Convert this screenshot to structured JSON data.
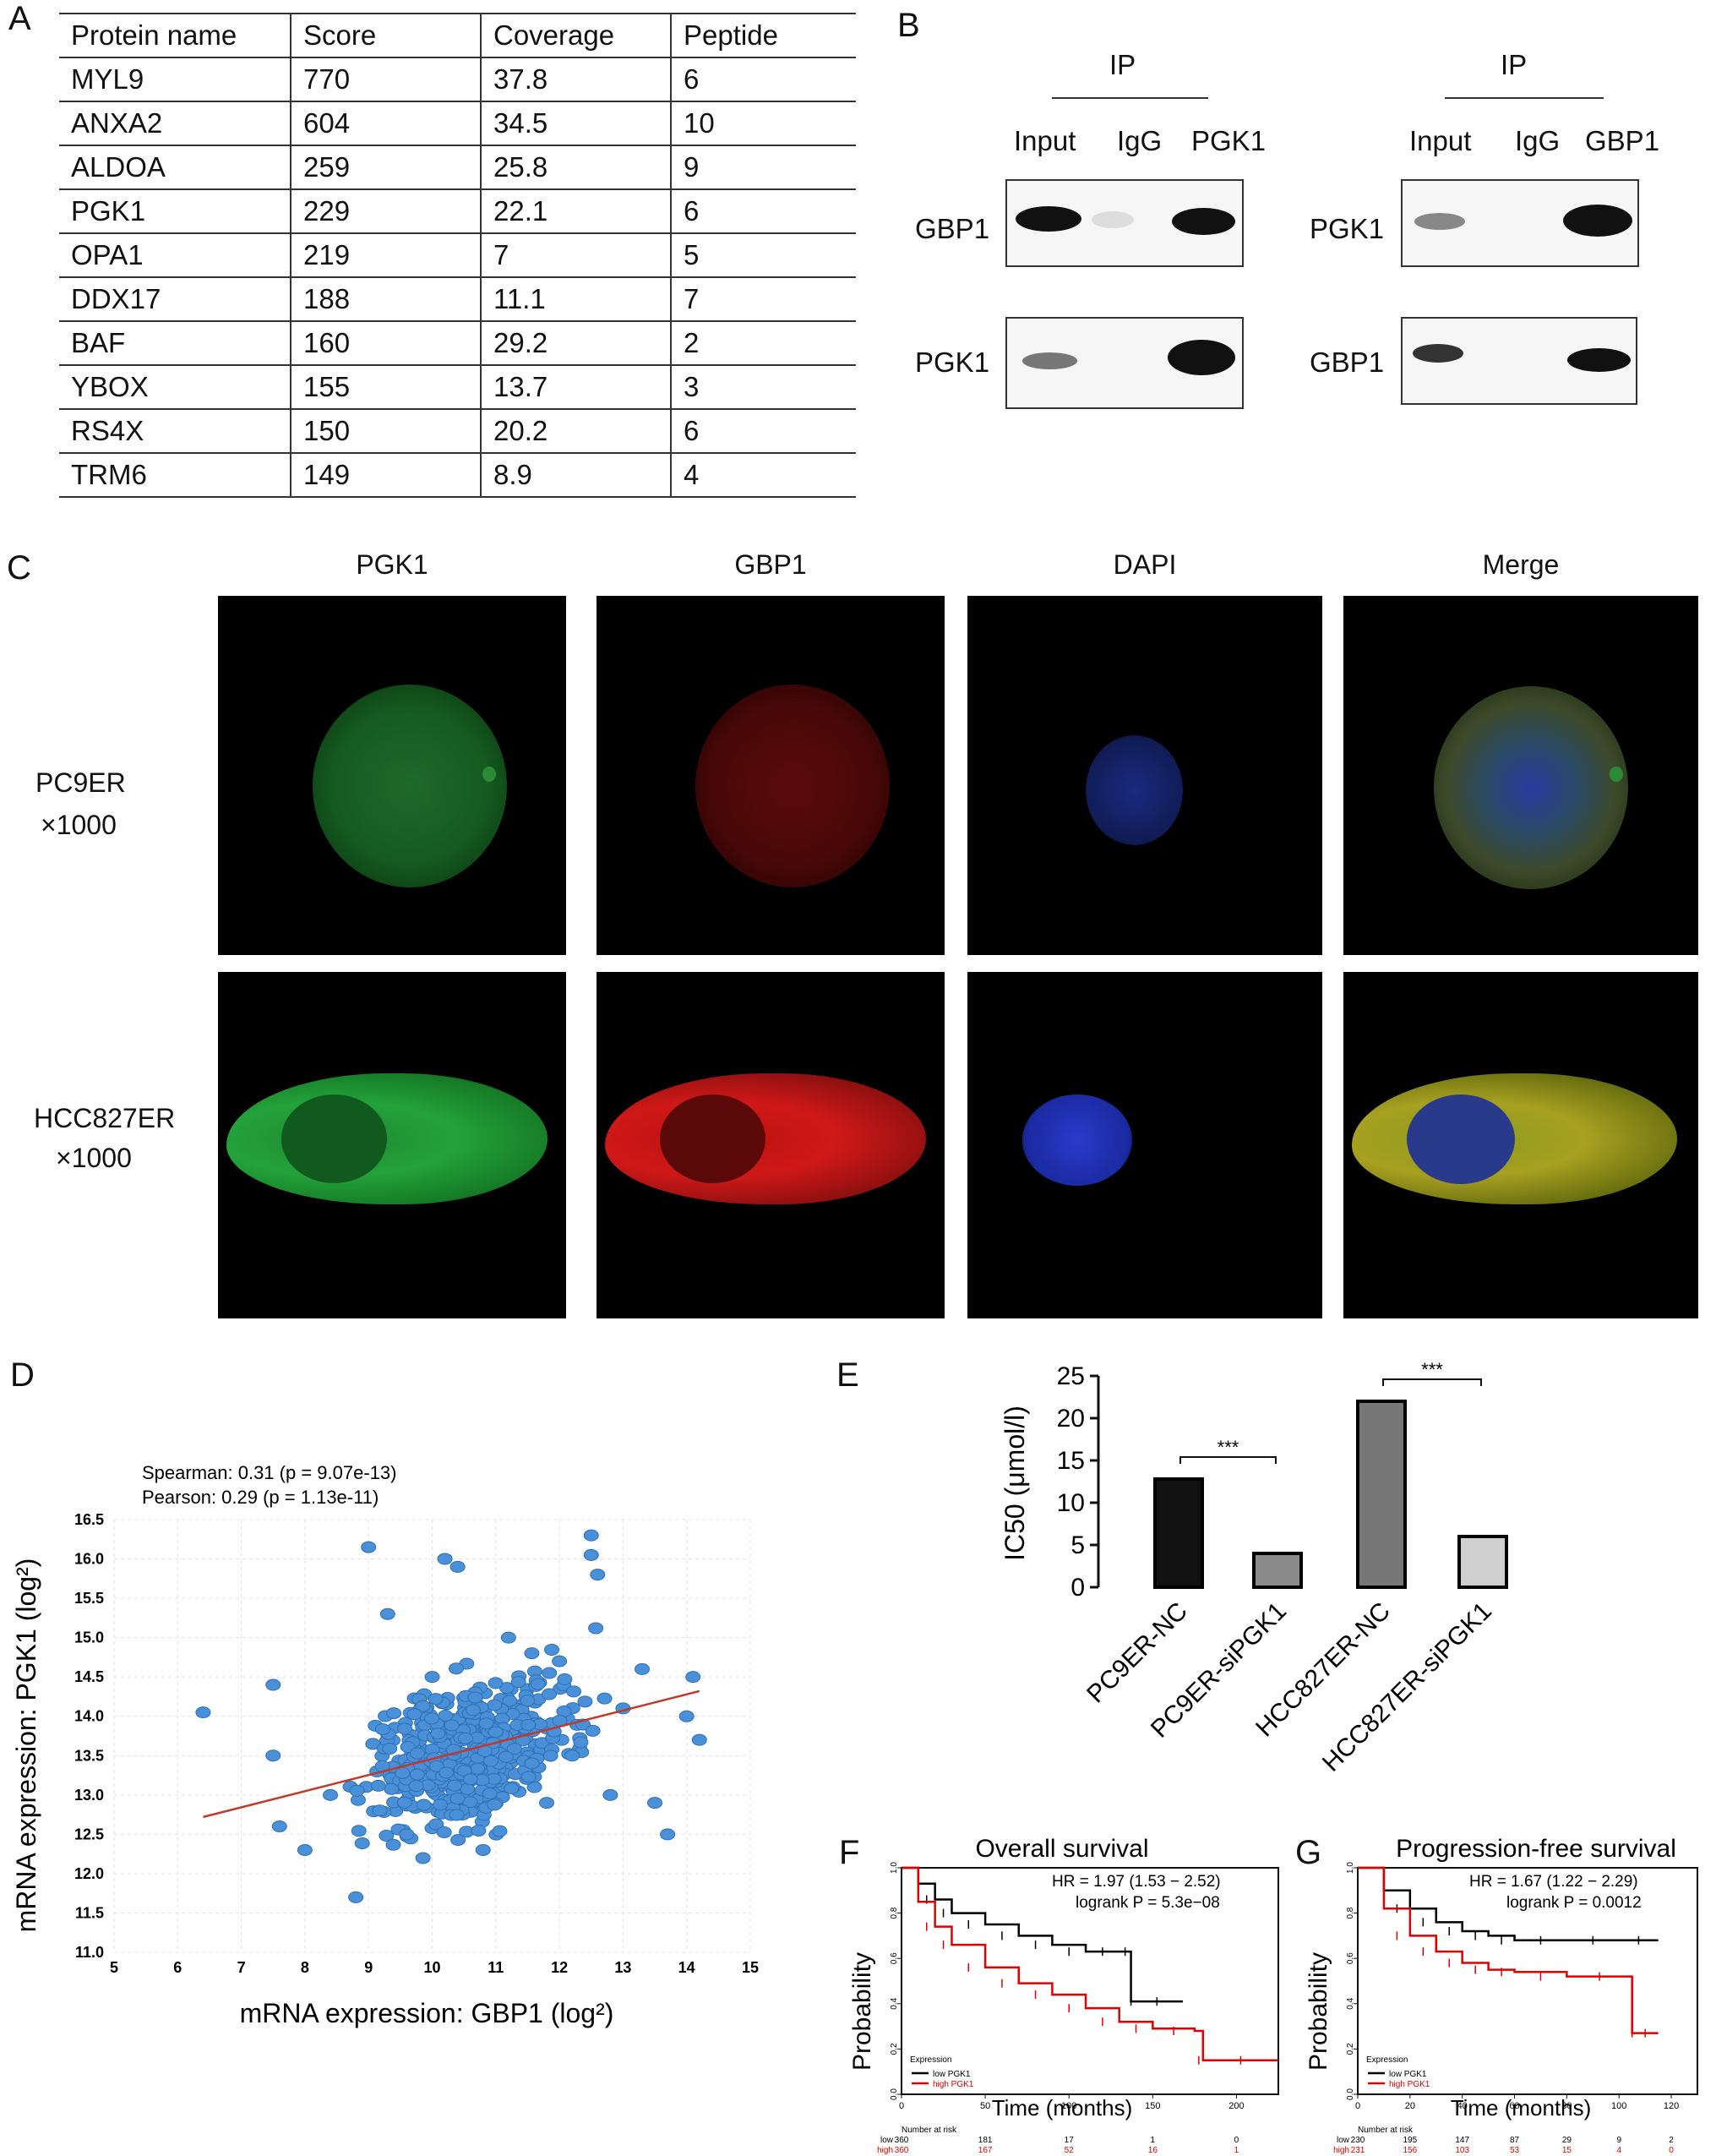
{
  "panels": {
    "A": "A",
    "B": "B",
    "C": "C",
    "D": "D",
    "E": "E",
    "F": "F",
    "G": "G"
  },
  "table": {
    "headers": [
      "Protein name",
      "Score",
      "Coverage",
      "Peptide"
    ],
    "rows": [
      [
        "MYL9",
        "770",
        "37.8",
        "6"
      ],
      [
        "ANXA2",
        "604",
        "34.5",
        "10"
      ],
      [
        "ALDOA",
        "259",
        "25.8",
        "9"
      ],
      [
        "PGK1",
        "229",
        "22.1",
        "6"
      ],
      [
        "OPA1",
        "219",
        "7",
        "5"
      ],
      [
        "DDX17",
        "188",
        "11.1",
        "7"
      ],
      [
        "BAF",
        "160",
        "29.2",
        "2"
      ],
      [
        "YBOX",
        "155",
        "13.7",
        "3"
      ],
      [
        "RS4X",
        "150",
        "20.2",
        "6"
      ],
      [
        "TRM6",
        "149",
        "8.9",
        "4"
      ]
    ]
  },
  "western": {
    "left": {
      "ip": "IP",
      "lanes": [
        "Input",
        "IgG",
        "PGK1"
      ],
      "rows": [
        "GBP1",
        "PGK1"
      ]
    },
    "right": {
      "ip": "IP",
      "lanes": [
        "Input",
        "IgG",
        "GBP1"
      ],
      "rows": [
        "PGK1",
        "GBP1"
      ]
    }
  },
  "microscopy": {
    "columns": [
      "PGK1",
      "GBP1",
      "DAPI",
      "Merge"
    ],
    "rows": [
      {
        "name": "PC9ER",
        "mag": "×1000"
      },
      {
        "name": "HCC827ER",
        "mag": "×1000"
      }
    ]
  },
  "chart_data": [
    {
      "type": "scatter",
      "annotation1": "Spearman: 0.31 (p = 9.07e-13)",
      "annotation2": "Pearson: 0.29 (p = 1.13e-11)",
      "xlabel": "mRNA expression: GBP1 (log²)",
      "ylabel": "mRNA expression: PGK1 (log²)",
      "xlim": [
        5,
        15
      ],
      "ylim": [
        11.0,
        16.5
      ],
      "xticks": [
        "5",
        "6",
        "7",
        "8",
        "9",
        "10",
        "11",
        "12",
        "13",
        "14",
        "15"
      ],
      "yticks": [
        "11.0",
        "11.5",
        "12.0",
        "12.5",
        "13.0",
        "13.5",
        "14.0",
        "14.5",
        "15.0",
        "15.5",
        "16.0",
        "16.5"
      ],
      "regression": {
        "x": [
          6.4,
          14.2
        ],
        "y": [
          12.72,
          14.32
        ]
      },
      "points_sample": [
        [
          6.4,
          14.05
        ],
        [
          7.5,
          14.4
        ],
        [
          7.5,
          13.5
        ],
        [
          7.6,
          12.6
        ],
        [
          8.0,
          12.3
        ],
        [
          8.4,
          13.0
        ],
        [
          8.8,
          11.7
        ],
        [
          9.0,
          16.15
        ],
        [
          9.3,
          15.3
        ],
        [
          9.6,
          12.5
        ],
        [
          10.0,
          14.5
        ],
        [
          10.2,
          16.0
        ],
        [
          10.4,
          15.9
        ],
        [
          10.6,
          13.2
        ],
        [
          10.8,
          12.3
        ],
        [
          11.0,
          13.8
        ],
        [
          11.2,
          15.0
        ],
        [
          11.5,
          14.2
        ],
        [
          11.8,
          12.9
        ],
        [
          12.0,
          14.7
        ],
        [
          12.2,
          13.5
        ],
        [
          12.5,
          16.3
        ],
        [
          12.5,
          16.05
        ],
        [
          12.6,
          15.8
        ],
        [
          12.8,
          13.0
        ],
        [
          13.0,
          14.1
        ],
        [
          13.3,
          14.6
        ],
        [
          13.5,
          12.9
        ],
        [
          13.7,
          12.5
        ],
        [
          14.0,
          14.0
        ],
        [
          14.2,
          13.7
        ],
        [
          14.1,
          14.5
        ]
      ]
    },
    {
      "type": "bar",
      "ylabel": "IC50 (μmol/l)",
      "ylim": [
        0,
        25
      ],
      "yticks": [
        "0",
        "5",
        "10",
        "15",
        "20",
        "25"
      ],
      "categories": [
        "PC9ER-NC",
        "PC9ER-siPGK1",
        "HCC827ER-NC",
        "HCC827ER-siPGK1"
      ],
      "values": [
        12.8,
        4.0,
        22.0,
        6.0
      ],
      "colors": [
        "#111111",
        "#8a8a8a",
        "#777777",
        "#cfcfcf"
      ],
      "sig": [
        "***",
        "***"
      ]
    },
    {
      "type": "line",
      "title": "Overall survival",
      "hr": "HR = 1.97 (1.53 − 2.52)",
      "logrank": "logrank P = 5.3e−08",
      "xlabel": "Time (months)",
      "ylabel": "Probability",
      "xticks": [
        "0",
        "50",
        "100",
        "150",
        "200"
      ],
      "yticks": [
        "0.0",
        "0.2",
        "0.4",
        "0.6",
        "0.8",
        "1.0"
      ],
      "legend_title": "Expression",
      "series": [
        {
          "name": "low PGK1",
          "color": "#000000",
          "x": [
            0,
            10,
            20,
            30,
            50,
            70,
            90,
            110,
            130,
            137,
            137,
            168
          ],
          "y": [
            1.0,
            0.93,
            0.86,
            0.8,
            0.75,
            0.7,
            0.66,
            0.63,
            0.63,
            0.63,
            0.41,
            0.41
          ]
        },
        {
          "name": "high PGK1",
          "color": "#e00000",
          "x": [
            0,
            10,
            20,
            30,
            50,
            70,
            90,
            110,
            130,
            150,
            175,
            180,
            225
          ],
          "y": [
            1.0,
            0.85,
            0.74,
            0.66,
            0.56,
            0.49,
            0.44,
            0.38,
            0.32,
            0.29,
            0.28,
            0.15,
            0.15
          ]
        }
      ],
      "risk": {
        "label": "Number at risk",
        "rows": [
          [
            "low",
            "360",
            "181",
            "17",
            "1",
            "0"
          ],
          [
            "high",
            "360",
            "167",
            "52",
            "16",
            "1"
          ]
        ]
      }
    },
    {
      "type": "line",
      "title": "Progression-free survival",
      "hr": "HR = 1.67 (1.22 − 2.29)",
      "logrank": "logrank P = 0.0012",
      "xlabel": "Time (months)",
      "ylabel": "Probability",
      "xticks": [
        "0",
        "20",
        "40",
        "60",
        "80",
        "100",
        "120"
      ],
      "yticks": [
        "0.0",
        "0.2",
        "0.4",
        "0.6",
        "0.8",
        "1.0"
      ],
      "legend_title": "Expression",
      "series": [
        {
          "name": "low PGK1",
          "color": "#000000",
          "x": [
            0,
            10,
            20,
            30,
            40,
            50,
            60,
            80,
            100,
            115
          ],
          "y": [
            1.0,
            0.9,
            0.82,
            0.76,
            0.72,
            0.7,
            0.68,
            0.68,
            0.68,
            0.68
          ]
        },
        {
          "name": "high PGK1",
          "color": "#e00000",
          "x": [
            0,
            10,
            20,
            30,
            40,
            50,
            60,
            80,
            105,
            105,
            115
          ],
          "y": [
            1.0,
            0.82,
            0.7,
            0.63,
            0.58,
            0.55,
            0.54,
            0.52,
            0.52,
            0.27,
            0.27
          ]
        }
      ],
      "risk": {
        "label": "Number at risk",
        "rows": [
          [
            "low",
            "230",
            "195",
            "147",
            "87",
            "29",
            "9",
            "2"
          ],
          [
            "high",
            "231",
            "156",
            "103",
            "53",
            "15",
            "4",
            "0"
          ]
        ]
      }
    }
  ]
}
